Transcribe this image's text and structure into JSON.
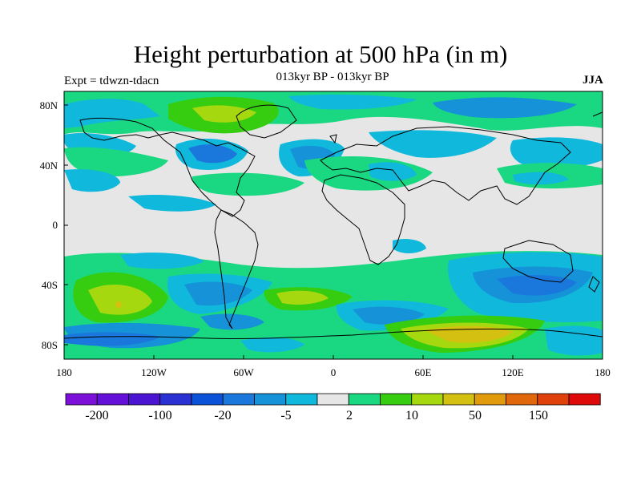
{
  "title": "Height perturbation at 500 hPa (in m)",
  "subtitle": "013kyr BP - 013kyr BP",
  "left_label": "Expt = tdwzn-tdacn",
  "right_label": "JJA",
  "lon_ticks": [
    "180",
    "120W",
    "60W",
    "0",
    "60E",
    "120E",
    "180"
  ],
  "lat_ticks": [
    "80N",
    "40N",
    "0",
    "40S",
    "80S"
  ],
  "colorbar": {
    "colors": [
      "#7c10d8",
      "#6510d8",
      "#4a14d0",
      "#2a30d2",
      "#0a52d8",
      "#1a78dc",
      "#1592d8",
      "#10b8dc",
      "#e6e6e6",
      "#1ad882",
      "#36cc10",
      "#a6d810",
      "#d4c010",
      "#e09a0c",
      "#e0680a",
      "#e0400a",
      "#de0a0a"
    ],
    "labels": [
      "-200",
      "-100",
      "-20",
      "-5",
      "2",
      "10",
      "50",
      "150"
    ]
  }
}
